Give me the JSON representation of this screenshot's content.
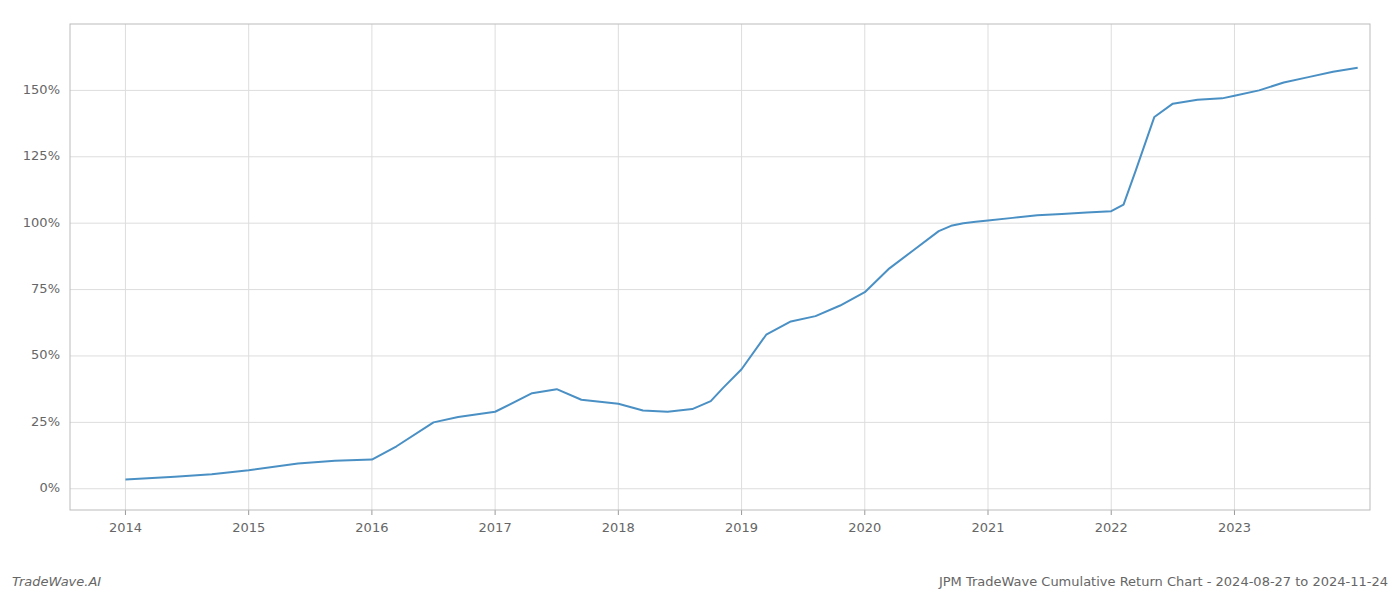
{
  "chart_data": {
    "type": "line",
    "title": "JPM TradeWave Cumulative Return Chart - 2024-08-27 to 2024-11-24",
    "annotations": [
      "TradeWave.AI"
    ],
    "color": "#4a90c4",
    "grid": true,
    "x": [
      2014.0,
      2014.4,
      2014.7,
      2015.0,
      2015.4,
      2015.7,
      2016.0,
      2016.2,
      2016.5,
      2016.7,
      2017.0,
      2017.3,
      2017.5,
      2017.7,
      2018.0,
      2018.2,
      2018.4,
      2018.6,
      2018.75,
      2018.85,
      2019.0,
      2019.2,
      2019.4,
      2019.6,
      2019.8,
      2020.0,
      2020.2,
      2020.4,
      2020.6,
      2020.7,
      2020.8,
      2020.9,
      2021.0,
      2021.2,
      2021.4,
      2021.6,
      2021.8,
      2022.0,
      2022.1,
      2022.2,
      2022.35,
      2022.5,
      2022.7,
      2022.9,
      2023.0,
      2023.2,
      2023.4,
      2023.6,
      2023.8,
      2024.0
    ],
    "values": [
      3.5,
      4.5,
      5.5,
      7.0,
      9.5,
      10.5,
      11.0,
      16.0,
      25.0,
      27.0,
      29.0,
      36.0,
      37.5,
      33.5,
      32.0,
      29.5,
      29.0,
      30.0,
      33.0,
      38.0,
      45.0,
      58.0,
      63.0,
      65.0,
      69.0,
      74.0,
      83.0,
      90.0,
      97.0,
      99.0,
      100.0,
      100.5,
      101.0,
      102.0,
      103.0,
      103.5,
      104.0,
      104.5,
      107.0,
      120.0,
      140.0,
      145.0,
      146.5,
      147.0,
      148.0,
      150.0,
      153.0,
      155.0,
      157.0,
      158.5
    ],
    "xlim": [
      2013.55,
      2024.1
    ],
    "xticks": [
      2014,
      2015,
      2016,
      2017,
      2018,
      2019,
      2020,
      2021,
      2022,
      2023
    ],
    "ylim": [
      -8,
      175
    ],
    "yticks": [
      {
        "value": 0,
        "label": "0%"
      },
      {
        "value": 25,
        "label": "25%"
      },
      {
        "value": 50,
        "label": "50%"
      },
      {
        "value": 75,
        "label": "75%"
      },
      {
        "value": 100,
        "label": "100%"
      },
      {
        "value": 125,
        "label": "125%"
      },
      {
        "value": 150,
        "label": "150%"
      }
    ]
  }
}
